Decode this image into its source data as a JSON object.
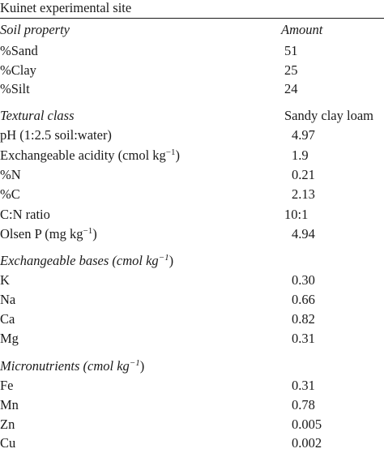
{
  "table": {
    "caption": "Kuinet experimental site",
    "header": {
      "property": "Soil property",
      "amount": "Amount"
    },
    "texture": [
      {
        "property": "%Sand",
        "amount": "51"
      },
      {
        "property": "%Clay",
        "amount": "25"
      },
      {
        "property": "%Silt",
        "amount": "24"
      }
    ],
    "textural_class": {
      "label": "Textural class",
      "value": "Sandy clay loam"
    },
    "chemistry": [
      {
        "property": "pH (1:2.5 soil:water)",
        "amount": "4.97"
      },
      {
        "property": "Exchangeable acidity (cmol kg",
        "unit_exp": "−1",
        "property_suffix": ")",
        "amount": "1.9"
      },
      {
        "property": "%N",
        "amount": "0.21"
      },
      {
        "property": "%C",
        "amount": "2.13"
      },
      {
        "property": "C:N ratio",
        "amount": "10:1"
      },
      {
        "property": "Olsen P (mg kg",
        "unit_exp": "−1",
        "property_suffix": ")",
        "amount": "4.94"
      }
    ],
    "bases_section": {
      "label": "Exchangeable bases (",
      "unit": "cmol kg",
      "unit_exp": "−1",
      "suffix": ")"
    },
    "bases": [
      {
        "property": "K",
        "amount": "0.30"
      },
      {
        "property": "Na",
        "amount": "0.66"
      },
      {
        "property": "Ca",
        "amount": "0.82"
      },
      {
        "property": "Mg",
        "amount": "0.31"
      }
    ],
    "micro_section": {
      "label": "Micronutrients (",
      "unit": "cmol kg",
      "unit_exp": "−1",
      "suffix": ")"
    },
    "micronutrients": [
      {
        "property": "Fe",
        "amount": "0.31"
      },
      {
        "property": "Mn",
        "amount": "0.78"
      },
      {
        "property": "Zn",
        "amount": "0.005"
      },
      {
        "property": "Cu",
        "amount": "0.002"
      }
    ]
  }
}
